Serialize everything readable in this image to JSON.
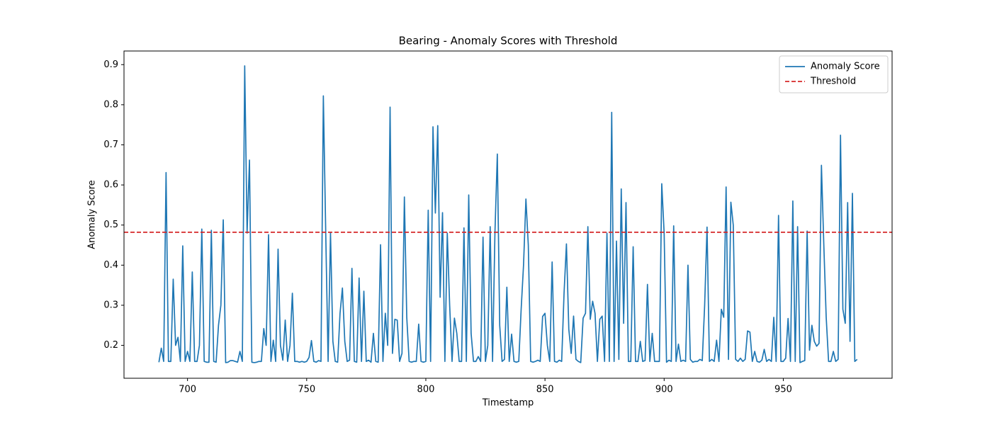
{
  "chart_data": {
    "type": "line",
    "title": "Bearing - Anomaly Scores with Threshold",
    "x_label": "Timestamp",
    "y_label": "Anomaly Score",
    "x": [
      688,
      689,
      690,
      691,
      692,
      693,
      694,
      695,
      696,
      697,
      698,
      699,
      700,
      701,
      702,
      703,
      704,
      705,
      706,
      707,
      708,
      709,
      710,
      711,
      712,
      713,
      714,
      715,
      716,
      717,
      718,
      719,
      720,
      721,
      722,
      723,
      724,
      725,
      726,
      727,
      728,
      729,
      730,
      731,
      732,
      733,
      734,
      735,
      736,
      737,
      738,
      739,
      740,
      741,
      742,
      743,
      744,
      745,
      746,
      747,
      748,
      749,
      750,
      751,
      752,
      753,
      754,
      755,
      756,
      757,
      758,
      759,
      760,
      761,
      762,
      763,
      764,
      765,
      766,
      767,
      768,
      769,
      770,
      771,
      772,
      773,
      774,
      775,
      776,
      777,
      778,
      779,
      780,
      781,
      782,
      783,
      784,
      785,
      786,
      787,
      788,
      789,
      790,
      791,
      792,
      793,
      794,
      795,
      796,
      797,
      798,
      799,
      800,
      801,
      802,
      803,
      804,
      805,
      806,
      807,
      808,
      809,
      810,
      811,
      812,
      813,
      814,
      815,
      816,
      817,
      818,
      819,
      820,
      821,
      822,
      823,
      824,
      825,
      826,
      827,
      828,
      829,
      830,
      831,
      832,
      833,
      834,
      835,
      836,
      837,
      838,
      839,
      840,
      841,
      842,
      843,
      844,
      845,
      846,
      847,
      848,
      849,
      850,
      851,
      852,
      853,
      854,
      855,
      856,
      857,
      858,
      859,
      860,
      861,
      862,
      863,
      864,
      865,
      866,
      867,
      868,
      869,
      870,
      871,
      872,
      873,
      874,
      875,
      876,
      877,
      878,
      879,
      880,
      881,
      882,
      883,
      884,
      885,
      886,
      887,
      888,
      889,
      890,
      891,
      892,
      893,
      894,
      895,
      896,
      897,
      898,
      899,
      900,
      901,
      902,
      903,
      904,
      905,
      906,
      907,
      908,
      909,
      910,
      911,
      912,
      913,
      914,
      915,
      916,
      917,
      918,
      919,
      920,
      921,
      922,
      923,
      924,
      925,
      926,
      927,
      928,
      929,
      930,
      931,
      932,
      933,
      934,
      935,
      936,
      937,
      938,
      939,
      940,
      941,
      942,
      943,
      944,
      945,
      946,
      947,
      948,
      949,
      950,
      951,
      952,
      953,
      954,
      955,
      956,
      957,
      958,
      959,
      960,
      961,
      962,
      963,
      964,
      965,
      966,
      967,
      968,
      969,
      970,
      971,
      972,
      973,
      974,
      975,
      976,
      977,
      978,
      979,
      980,
      981
    ],
    "series": [
      {
        "name": "Anomaly Score",
        "color": "#1f77b4",
        "values": [
          0.158,
          0.193,
          0.16,
          0.631,
          0.16,
          0.16,
          0.365,
          0.2,
          0.22,
          0.16,
          0.448,
          0.16,
          0.185,
          0.16,
          0.383,
          0.16,
          0.16,
          0.2,
          0.49,
          0.16,
          0.158,
          0.158,
          0.487,
          0.16,
          0.158,
          0.25,
          0.3,
          0.513,
          0.157,
          0.158,
          0.162,
          0.162,
          0.16,
          0.158,
          0.185,
          0.16,
          0.897,
          0.48,
          0.662,
          0.158,
          0.157,
          0.158,
          0.16,
          0.16,
          0.242,
          0.2,
          0.476,
          0.16,
          0.213,
          0.16,
          0.44,
          0.2,
          0.163,
          0.263,
          0.16,
          0.2,
          0.33,
          0.16,
          0.16,
          0.158,
          0.16,
          0.158,
          0.16,
          0.17,
          0.212,
          0.16,
          0.158,
          0.162,
          0.16,
          0.822,
          0.48,
          0.16,
          0.48,
          0.21,
          0.16,
          0.158,
          0.28,
          0.343,
          0.21,
          0.16,
          0.163,
          0.392,
          0.16,
          0.158,
          0.368,
          0.16,
          0.335,
          0.16,
          0.163,
          0.158,
          0.23,
          0.16,
          0.158,
          0.451,
          0.16,
          0.28,
          0.2,
          0.794,
          0.18,
          0.265,
          0.263,
          0.16,
          0.18,
          0.57,
          0.27,
          0.16,
          0.158,
          0.16,
          0.16,
          0.253,
          0.16,
          0.158,
          0.16,
          0.537,
          0.16,
          0.745,
          0.53,
          0.748,
          0.32,
          0.531,
          0.16,
          0.48,
          0.3,
          0.16,
          0.268,
          0.23,
          0.16,
          0.16,
          0.493,
          0.16,
          0.575,
          0.23,
          0.16,
          0.16,
          0.172,
          0.16,
          0.47,
          0.16,
          0.2,
          0.496,
          0.16,
          0.48,
          0.677,
          0.25,
          0.16,
          0.165,
          0.345,
          0.16,
          0.228,
          0.16,
          0.158,
          0.16,
          0.29,
          0.4,
          0.565,
          0.45,
          0.16,
          0.158,
          0.16,
          0.163,
          0.16,
          0.272,
          0.28,
          0.2,
          0.16,
          0.408,
          0.16,
          0.158,
          0.163,
          0.16,
          0.33,
          0.453,
          0.24,
          0.18,
          0.273,
          0.165,
          0.16,
          0.157,
          0.268,
          0.28,
          0.496,
          0.265,
          0.31,
          0.28,
          0.16,
          0.265,
          0.273,
          0.16,
          0.48,
          0.16,
          0.781,
          0.16,
          0.46,
          0.165,
          0.59,
          0.255,
          0.556,
          0.16,
          0.16,
          0.446,
          0.16,
          0.16,
          0.21,
          0.16,
          0.162,
          0.352,
          0.16,
          0.23,
          0.16,
          0.16,
          0.16,
          0.603,
          0.48,
          0.158,
          0.163,
          0.16,
          0.498,
          0.16,
          0.203,
          0.16,
          0.163,
          0.16,
          0.4,
          0.165,
          0.158,
          0.16,
          0.16,
          0.165,
          0.162,
          0.3,
          0.495,
          0.16,
          0.165,
          0.16,
          0.213,
          0.16,
          0.29,
          0.27,
          0.595,
          0.165,
          0.557,
          0.5,
          0.165,
          0.16,
          0.168,
          0.16,
          0.165,
          0.236,
          0.233,
          0.16,
          0.185,
          0.16,
          0.158,
          0.163,
          0.19,
          0.16,
          0.165,
          0.16,
          0.27,
          0.16,
          0.524,
          0.16,
          0.16,
          0.168,
          0.267,
          0.16,
          0.56,
          0.16,
          0.496,
          0.157,
          0.16,
          0.162,
          0.485,
          0.188,
          0.25,
          0.21,
          0.198,
          0.205,
          0.649,
          0.45,
          0.27,
          0.16,
          0.16,
          0.185,
          0.16,
          0.165,
          0.724,
          0.29,
          0.255,
          0.556,
          0.21,
          0.579,
          0.16,
          0.165
        ]
      }
    ],
    "threshold": {
      "name": "Threshold",
      "value": 0.482,
      "color": "#d62728"
    },
    "xlim": [
      673.35,
      995.65
    ],
    "ylim": [
      0.118,
      0.934
    ],
    "xticks": [
      700,
      750,
      800,
      850,
      900,
      950
    ],
    "yticks": [
      0.2,
      0.3,
      0.4,
      0.5,
      0.6,
      0.7,
      0.8,
      0.9
    ],
    "legend": "upper right",
    "grid": false
  }
}
